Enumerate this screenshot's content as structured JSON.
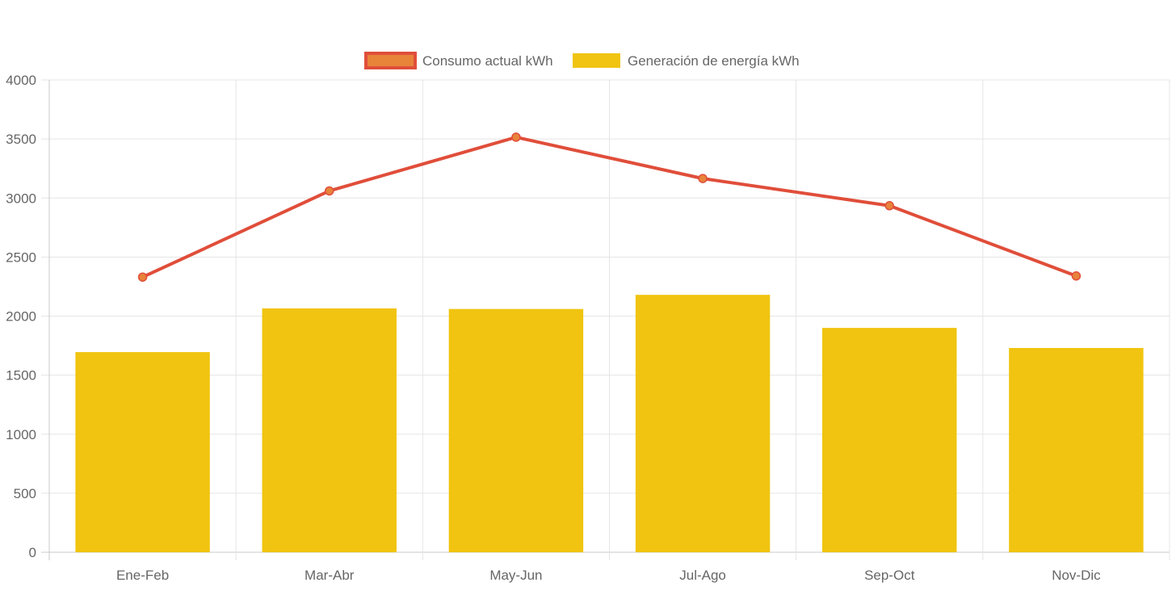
{
  "chart_data": {
    "type": "bar",
    "title": "",
    "xlabel": "",
    "ylabel": "",
    "ylim": [
      0,
      4000
    ],
    "ytick_step": 500,
    "yticks": [
      "0",
      "500",
      "1000",
      "1500",
      "2000",
      "2500",
      "3000",
      "3500",
      "4000"
    ],
    "grid": true,
    "legend_position": "top-center",
    "categories": [
      "Ene-Feb",
      "Mar-Abr",
      "May-Jun",
      "Jul-Ago",
      "Sep-Oct",
      "Nov-Dic"
    ],
    "series": [
      {
        "name": "Consumo actual kWh",
        "kind": "line",
        "color": "#e04e3a",
        "point_color": "#e8833a",
        "legend_fill": "#e8833a",
        "values": [
          2330,
          3060,
          3515,
          3165,
          2935,
          2340
        ]
      },
      {
        "name": "Generación de energía kWh",
        "kind": "bar",
        "color": "#f0c410",
        "values": [
          1695,
          2065,
          2060,
          2180,
          1900,
          1730
        ]
      }
    ]
  }
}
